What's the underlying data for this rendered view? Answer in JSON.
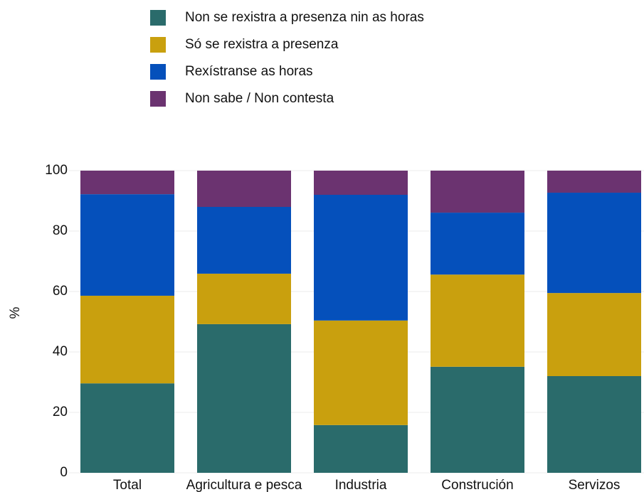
{
  "chart_data": {
    "type": "stacked_bar",
    "categories": [
      "Total",
      "Agricultura e pesca",
      "Industria",
      "Construción",
      "Servizos"
    ],
    "series": [
      {
        "name": "Non se rexistra a presenza nin as horas",
        "color": "#2a6b6b",
        "values": [
          29.6,
          49.2,
          15.8,
          35.1,
          32.0
        ]
      },
      {
        "name": "Só se rexistra a presenza",
        "color": "#c9a00e",
        "values": [
          29.0,
          16.7,
          34.6,
          30.5,
          27.5
        ]
      },
      {
        "name": "Rexístranse as horas",
        "color": "#0550bb",
        "values": [
          33.6,
          22.1,
          41.6,
          20.5,
          33.2
        ]
      },
      {
        "name": "Non sabe / Non contesta",
        "color": "#6b3370",
        "values": [
          7.8,
          12.0,
          8.0,
          13.9,
          7.3
        ]
      }
    ],
    "ylabel": "%",
    "ylim": [
      0,
      100
    ],
    "yticks": [
      0,
      20,
      40,
      60,
      80,
      100
    ],
    "grid": true,
    "legend": "top"
  }
}
